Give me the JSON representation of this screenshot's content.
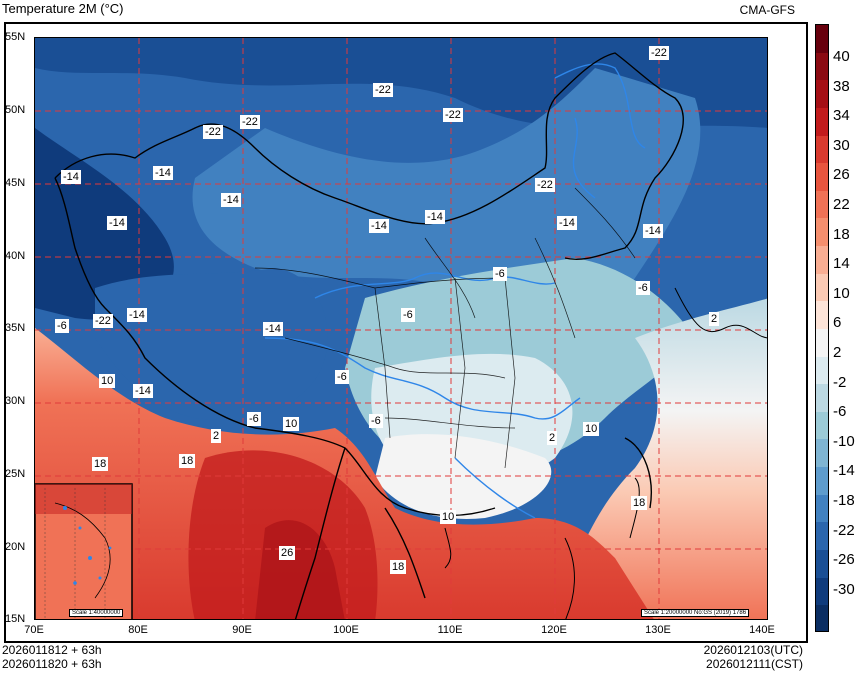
{
  "header": {
    "title": "Temperature  2M (°C)",
    "source": "CMA-GFS"
  },
  "footer": {
    "init_utc": "2026011812 + 63h",
    "init_cst": "2026011820 + 63h",
    "valid_utc": "2026012103(UTC)",
    "valid_cst": "2026012111(CST)"
  },
  "axes": {
    "lat_labels": [
      "55N",
      "50N",
      "45N",
      "40N",
      "35N",
      "30N",
      "25N",
      "20N",
      "15N"
    ],
    "lon_labels": [
      "70E",
      "80E",
      "90E",
      "100E",
      "110E",
      "120E",
      "130E",
      "140E"
    ]
  },
  "colorbar": {
    "labels": [
      "40",
      "38",
      "34",
      "30",
      "26",
      "22",
      "18",
      "14",
      "10",
      "6",
      "2",
      "-2",
      "-6",
      "-10",
      "-14",
      "-18",
      "-22",
      "-26",
      "-30"
    ],
    "colors": [
      "#67000d",
      "#8b0a12",
      "#a50f15",
      "#c21b1c",
      "#d93a2e",
      "#e8553e",
      "#f07256",
      "#f58f6e",
      "#f9ae93",
      "#fbcab4",
      "#fde4d8",
      "#f4f4f4",
      "#dcebf0",
      "#bcd9e3",
      "#9ccbd7",
      "#7fb5d3",
      "#5e9ccd",
      "#4181c0",
      "#2b66ad",
      "#1a4f95",
      "#0f3b7c",
      "#0a2d62"
    ]
  },
  "inset": {
    "scale": "Scale 1:40000000"
  },
  "map_note": {
    "scale": "Scale 1:20000000 No:GS (2019) 1786"
  },
  "contour_labels": [
    {
      "id": "c1",
      "text": "-22"
    },
    {
      "id": "c2",
      "text": "-22"
    },
    {
      "id": "c3",
      "text": "-22"
    },
    {
      "id": "c4",
      "text": "-22"
    },
    {
      "id": "c5",
      "text": "-22"
    },
    {
      "id": "c6",
      "text": "-22"
    },
    {
      "id": "c7",
      "text": "-22"
    },
    {
      "id": "c8",
      "text": "-14"
    },
    {
      "id": "c9",
      "text": "-14"
    },
    {
      "id": "c10",
      "text": "-14"
    },
    {
      "id": "c11",
      "text": "-14"
    },
    {
      "id": "c12",
      "text": "-14"
    },
    {
      "id": "c13",
      "text": "-14"
    },
    {
      "id": "c14",
      "text": "-14"
    },
    {
      "id": "c15",
      "text": "-14"
    },
    {
      "id": "c16",
      "text": "-14"
    },
    {
      "id": "c17",
      "text": "-14"
    },
    {
      "id": "c18",
      "text": "-6"
    },
    {
      "id": "c19",
      "text": "-6"
    },
    {
      "id": "c20",
      "text": "-6"
    },
    {
      "id": "c21",
      "text": "-6"
    },
    {
      "id": "c22",
      "text": "-6"
    },
    {
      "id": "c23",
      "text": "-6"
    },
    {
      "id": "c24",
      "text": "-6"
    },
    {
      "id": "c25",
      "text": "2"
    },
    {
      "id": "c26",
      "text": "2"
    },
    {
      "id": "c27",
      "text": "2"
    },
    {
      "id": "c28",
      "text": "10"
    },
    {
      "id": "c29",
      "text": "10"
    },
    {
      "id": "c30",
      "text": "10"
    },
    {
      "id": "c31",
      "text": "10"
    },
    {
      "id": "c32",
      "text": "18"
    },
    {
      "id": "c33",
      "text": "18"
    },
    {
      "id": "c34",
      "text": "18"
    },
    {
      "id": "c35",
      "text": "18"
    },
    {
      "id": "c36",
      "text": "26"
    },
    {
      "id": "c37",
      "text": "-14"
    }
  ]
}
